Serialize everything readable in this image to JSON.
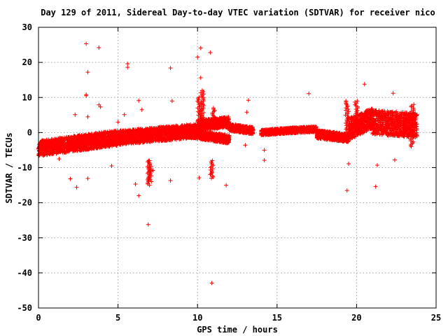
{
  "chart_data": {
    "type": "scatter",
    "title": "Day 129 of 2011, Sidereal Day-to-day VTEC variation (SDTVAR) for receiver nico",
    "xlabel": "GPS time / hours",
    "ylabel": "SDTVAR / TECUs",
    "xlim": [
      0,
      25
    ],
    "ylim": [
      -50,
      30
    ],
    "xticks": [
      0,
      5,
      10,
      15,
      20,
      25
    ],
    "yticks": [
      30,
      20,
      10,
      0,
      -10,
      -20,
      -30,
      -40,
      -50
    ],
    "grid": true,
    "legend": "none",
    "marker": "+",
    "color": "#ff0000",
    "bands": [
      {
        "x": [
          0.0,
          5.0
        ],
        "y_center": [
          -4.5,
          -1.5
        ],
        "half_width": 2.2
      },
      {
        "x": [
          5.0,
          10.0
        ],
        "y_center": [
          -1.5,
          0.5
        ],
        "half_width": 2.0
      },
      {
        "x": [
          10.0,
          12.0
        ],
        "y_center": [
          2.0,
          3.0
        ],
        "half_width": 1.5
      },
      {
        "x": [
          8.5,
          12.0
        ],
        "y_center": [
          0.5,
          -2.0
        ],
        "half_width": 1.2
      },
      {
        "x": [
          12.0,
          13.5
        ],
        "y_center": [
          1.5,
          0.5
        ],
        "half_width": 1.0
      },
      {
        "x": [
          14.0,
          15.5
        ],
        "y_center": [
          0.0,
          0.5
        ],
        "half_width": 0.8
      },
      {
        "x": [
          15.5,
          17.5
        ],
        "y_center": [
          0.5,
          1.0
        ],
        "half_width": 0.8
      },
      {
        "x": [
          17.5,
          19.5
        ],
        "y_center": [
          -0.5,
          -1.5
        ],
        "half_width": 1.2
      },
      {
        "x": [
          19.5,
          21.0
        ],
        "y_center": [
          1.0,
          4.0
        ],
        "half_width": 3.0
      },
      {
        "x": [
          21.0,
          23.8
        ],
        "y_center": [
          3.0,
          2.0
        ],
        "half_width": 3.5
      }
    ],
    "spikes": [
      {
        "x": 6.9,
        "y_from": -8,
        "y_to": -15
      },
      {
        "x": 7.0,
        "y_from": -8,
        "y_to": -14
      },
      {
        "x": 10.1,
        "y_from": 0,
        "y_to": 10
      },
      {
        "x": 10.3,
        "y_from": 0,
        "y_to": 12
      },
      {
        "x": 11.0,
        "y_from": 2,
        "y_to": 7
      },
      {
        "x": 19.4,
        "y_from": -2,
        "y_to": 9
      },
      {
        "x": 20.0,
        "y_from": 0,
        "y_to": 9
      },
      {
        "x": 23.5,
        "y_from": -4,
        "y_to": 8
      },
      {
        "x": 10.9,
        "y_from": -8,
        "y_to": -13
      }
    ],
    "outliers": [
      {
        "x": 3.0,
        "y": 25.3
      },
      {
        "x": 3.8,
        "y": 24.2
      },
      {
        "x": 10.2,
        "y": 24.1
      },
      {
        "x": 10.8,
        "y": 22.8
      },
      {
        "x": 10.0,
        "y": 21.5
      },
      {
        "x": 5.6,
        "y": 19.6
      },
      {
        "x": 5.6,
        "y": 18.6
      },
      {
        "x": 8.3,
        "y": 18.4
      },
      {
        "x": 3.1,
        "y": 17.2
      },
      {
        "x": 10.2,
        "y": 15.6
      },
      {
        "x": 20.5,
        "y": 13.8
      },
      {
        "x": 17.0,
        "y": 11.1
      },
      {
        "x": 22.3,
        "y": 11.2
      },
      {
        "x": 3.0,
        "y": 10.5
      },
      {
        "x": 3.0,
        "y": 10.8
      },
      {
        "x": 8.4,
        "y": 9.0
      },
      {
        "x": 6.3,
        "y": 9.1
      },
      {
        "x": 13.2,
        "y": 9.2
      },
      {
        "x": 3.8,
        "y": 7.9
      },
      {
        "x": 3.9,
        "y": 7.3
      },
      {
        "x": 6.5,
        "y": 6.5
      },
      {
        "x": 13.1,
        "y": 5.8
      },
      {
        "x": 2.3,
        "y": 5.1
      },
      {
        "x": 3.1,
        "y": 4.5
      },
      {
        "x": 5.4,
        "y": 5.1
      },
      {
        "x": 5.0,
        "y": 3.0
      },
      {
        "x": 13.0,
        "y": -3.6
      },
      {
        "x": 14.2,
        "y": -5.0
      },
      {
        "x": 14.2,
        "y": -7.9
      },
      {
        "x": 19.5,
        "y": -8.9
      },
      {
        "x": 21.3,
        "y": -9.3
      },
      {
        "x": 22.4,
        "y": -7.8
      },
      {
        "x": 2.0,
        "y": -13.2
      },
      {
        "x": 2.4,
        "y": -15.6
      },
      {
        "x": 3.1,
        "y": -13.1
      },
      {
        "x": 6.1,
        "y": -14.7
      },
      {
        "x": 6.3,
        "y": -18.0
      },
      {
        "x": 8.3,
        "y": -13.7
      },
      {
        "x": 10.1,
        "y": -12.9
      },
      {
        "x": 10.9,
        "y": -11.5
      },
      {
        "x": 11.8,
        "y": -15.0
      },
      {
        "x": 19.4,
        "y": -16.5
      },
      {
        "x": 21.2,
        "y": -15.4
      },
      {
        "x": 6.9,
        "y": -26.2
      },
      {
        "x": 10.9,
        "y": -42.9
      },
      {
        "x": 7.2,
        "y": -10.8
      },
      {
        "x": 4.6,
        "y": -9.5
      },
      {
        "x": 1.3,
        "y": -7.5
      }
    ]
  }
}
